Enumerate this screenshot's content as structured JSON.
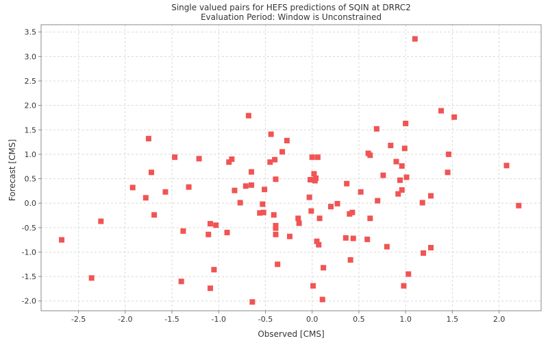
{
  "chart_data": {
    "type": "scatter",
    "title": "Single valued pairs for HEFS predictions of SQIN at DRRC2",
    "subtitle": "Evaluation Period: Window is Unconstrained",
    "xlabel": "Observed [CMS]",
    "ylabel": "Forecast [CMS]",
    "xlim": [
      -2.9,
      2.45
    ],
    "ylim": [
      -2.2,
      3.65
    ],
    "xticks": [
      -2.5,
      -2.0,
      -1.5,
      -1.0,
      -0.5,
      0.0,
      0.5,
      1.0,
      1.5,
      2.0
    ],
    "yticks": [
      -2.0,
      -1.5,
      -1.0,
      -0.5,
      0.0,
      0.5,
      1.0,
      1.5,
      2.0,
      2.5,
      3.0,
      3.5
    ],
    "grid": true,
    "marker_color": "#f05454",
    "points": [
      [
        -2.68,
        -0.75
      ],
      [
        -2.36,
        -1.53
      ],
      [
        -2.26,
        -0.37
      ],
      [
        -1.92,
        0.32
      ],
      [
        -1.78,
        0.11
      ],
      [
        -1.75,
        1.32
      ],
      [
        -1.72,
        0.63
      ],
      [
        -1.69,
        -0.24
      ],
      [
        -1.57,
        0.23
      ],
      [
        -1.47,
        0.94
      ],
      [
        -1.4,
        -1.6
      ],
      [
        -1.38,
        -0.57
      ],
      [
        -1.32,
        0.33
      ],
      [
        -1.21,
        0.91
      ],
      [
        -1.11,
        -0.64
      ],
      [
        -1.09,
        -0.42
      ],
      [
        -1.09,
        -1.74
      ],
      [
        -1.05,
        -1.36
      ],
      [
        -1.03,
        -0.45
      ],
      [
        -0.91,
        -0.6
      ],
      [
        -0.89,
        0.84
      ],
      [
        -0.86,
        0.9
      ],
      [
        -0.83,
        0.26
      ],
      [
        -0.77,
        0.01
      ],
      [
        -0.71,
        0.35
      ],
      [
        -0.68,
        1.79
      ],
      [
        -0.65,
        0.64
      ],
      [
        -0.65,
        0.37
      ],
      [
        -0.64,
        -2.02
      ],
      [
        -0.56,
        -0.2
      ],
      [
        -0.53,
        -0.02
      ],
      [
        -0.52,
        -0.19
      ],
      [
        -0.51,
        0.28
      ],
      [
        -0.45,
        0.84
      ],
      [
        -0.44,
        1.41
      ],
      [
        -0.41,
        -0.24
      ],
      [
        -0.4,
        0.89
      ],
      [
        -0.39,
        0.49
      ],
      [
        -0.39,
        -0.46
      ],
      [
        -0.39,
        -0.51
      ],
      [
        -0.39,
        -0.64
      ],
      [
        -0.37,
        -1.25
      ],
      [
        -0.32,
        1.05
      ],
      [
        -0.27,
        1.28
      ],
      [
        -0.24,
        -0.68
      ],
      [
        -0.15,
        -0.31
      ],
      [
        -0.14,
        -0.41
      ],
      [
        -0.03,
        0.12
      ],
      [
        -0.02,
        0.48
      ],
      [
        -0.01,
        -0.16
      ],
      [
        0.0,
        0.94
      ],
      [
        0.01,
        -1.69
      ],
      [
        0.02,
        0.6
      ],
      [
        0.03,
        0.46
      ],
      [
        0.04,
        0.51
      ],
      [
        0.05,
        -0.78
      ],
      [
        0.06,
        0.94
      ],
      [
        0.07,
        -0.85
      ],
      [
        0.08,
        -0.31
      ],
      [
        0.11,
        -1.97
      ],
      [
        0.12,
        -1.32
      ],
      [
        0.2,
        -0.07
      ],
      [
        0.27,
        -0.01
      ],
      [
        0.36,
        -0.71
      ],
      [
        0.37,
        0.4
      ],
      [
        0.4,
        -0.22
      ],
      [
        0.41,
        -1.16
      ],
      [
        0.43,
        -0.19
      ],
      [
        0.44,
        -0.72
      ],
      [
        0.52,
        0.23
      ],
      [
        0.59,
        -0.74
      ],
      [
        0.6,
        1.02
      ],
      [
        0.62,
        0.98
      ],
      [
        0.62,
        -0.31
      ],
      [
        0.69,
        1.52
      ],
      [
        0.7,
        0.05
      ],
      [
        0.76,
        0.57
      ],
      [
        0.8,
        -0.89
      ],
      [
        0.84,
        1.18
      ],
      [
        0.9,
        0.85
      ],
      [
        0.92,
        0.19
      ],
      [
        0.94,
        0.47
      ],
      [
        0.96,
        0.27
      ],
      [
        0.96,
        0.76
      ],
      [
        0.98,
        -1.69
      ],
      [
        0.99,
        1.12
      ],
      [
        1.0,
        1.63
      ],
      [
        1.01,
        0.53
      ],
      [
        1.03,
        -1.45
      ],
      [
        1.1,
        3.36
      ],
      [
        1.18,
        0.01
      ],
      [
        1.19,
        -1.02
      ],
      [
        1.27,
        0.15
      ],
      [
        1.27,
        -0.91
      ],
      [
        1.38,
        1.89
      ],
      [
        1.45,
        0.63
      ],
      [
        1.46,
        1.0
      ],
      [
        1.52,
        1.76
      ],
      [
        2.08,
        0.77
      ],
      [
        2.21,
        -0.05
      ]
    ]
  }
}
